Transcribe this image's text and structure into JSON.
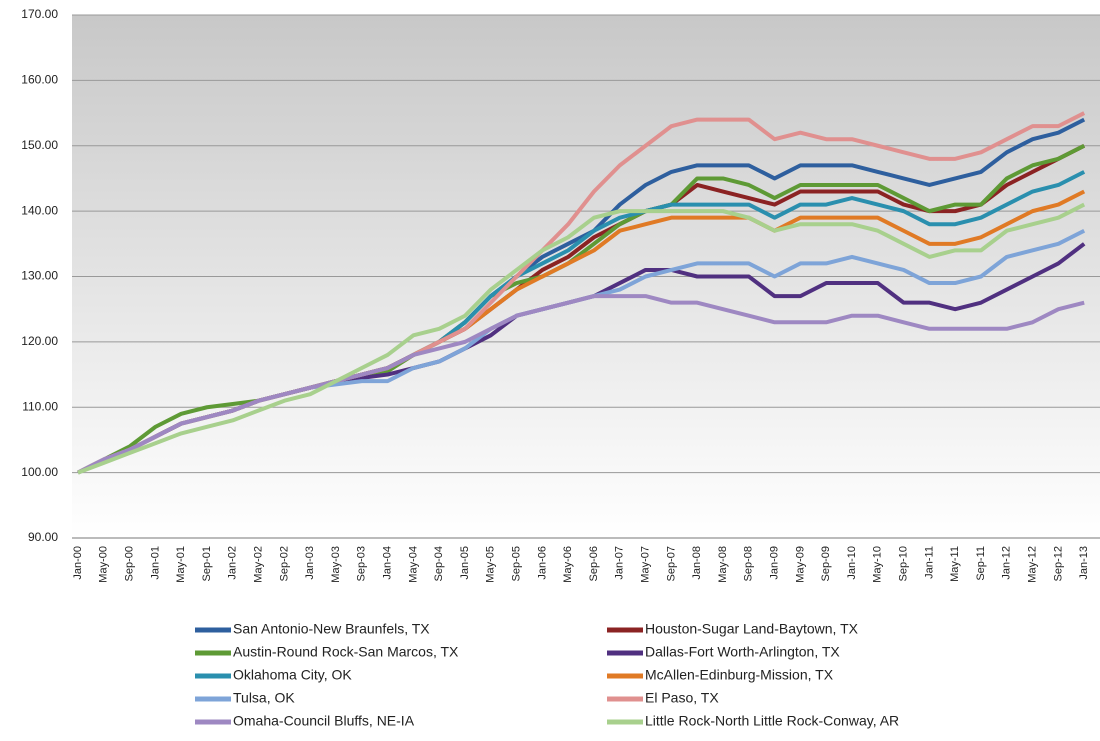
{
  "chart_data": {
    "type": "line",
    "categories": [
      "Jan-00",
      "May-00",
      "Sep-00",
      "Jan-01",
      "May-01",
      "Sep-01",
      "Jan-02",
      "May-02",
      "Sep-02",
      "Jan-03",
      "May-03",
      "Sep-03",
      "Jan-04",
      "May-04",
      "Sep-04",
      "Jan-05",
      "May-05",
      "Sep-05",
      "Jan-06",
      "May-06",
      "Sep-06",
      "Jan-07",
      "May-07",
      "Sep-07",
      "Jan-08",
      "May-08",
      "Sep-08",
      "Jan-09",
      "May-09",
      "Sep-09",
      "Jan-10",
      "May-10",
      "Sep-10",
      "Jan-11",
      "May-11",
      "Sep-11",
      "Jan-12",
      "May-12",
      "Sep-12",
      "Jan-13"
    ],
    "ylim": [
      90,
      170
    ],
    "yticks": [
      {
        "value": 90,
        "label": "90.00"
      },
      {
        "value": 100,
        "label": "100.00"
      },
      {
        "value": 110,
        "label": "110.00"
      },
      {
        "value": 120,
        "label": "120.00"
      },
      {
        "value": 130,
        "label": "130.00"
      },
      {
        "value": 140,
        "label": "140.00"
      },
      {
        "value": 150,
        "label": "150.00"
      },
      {
        "value": 160,
        "label": "160.00"
      },
      {
        "value": 170,
        "label": "170.00"
      }
    ],
    "grid": true,
    "series": [
      {
        "name": "San Antonio-New Braunfels, TX",
        "color": "#2e5f9e",
        "values": [
          100,
          102,
          103.5,
          105.5,
          107.5,
          108.5,
          109.5,
          111,
          112,
          113,
          114,
          115,
          116,
          118,
          120,
          123,
          127,
          130,
          133,
          135,
          137,
          141,
          144,
          146,
          147,
          147,
          147,
          145,
          147,
          147,
          147,
          146,
          145,
          144,
          145,
          146,
          149,
          151,
          152,
          154
        ]
      },
      {
        "name": "Houston-Sugar Land-Baytown, TX",
        "color": "#8b2323",
        "values": [
          100,
          102,
          103.5,
          105.5,
          107.5,
          108.5,
          109.5,
          111,
          112,
          113,
          114,
          115,
          116,
          118,
          120,
          122,
          125,
          128,
          131,
          133,
          136,
          138,
          140,
          141,
          144,
          143,
          142,
          141,
          143,
          143,
          143,
          143,
          141,
          140,
          140,
          141,
          144,
          146,
          148,
          150
        ]
      },
      {
        "name": "Austin-Round Rock-San Marcos, TX",
        "color": "#5e9a35",
        "values": [
          100,
          102,
          104,
          107,
          109,
          110,
          110.5,
          111,
          112,
          113,
          114,
          115,
          115.5,
          118,
          120,
          123,
          127,
          129,
          130,
          132,
          135,
          138,
          140,
          141,
          145,
          145,
          144,
          142,
          144,
          144,
          144,
          144,
          142,
          140,
          141,
          141,
          145,
          147,
          148,
          150
        ]
      },
      {
        "name": "Dallas-Fort Worth-Arlington, TX",
        "color": "#503080",
        "values": [
          100,
          102,
          103.5,
          105.5,
          107.5,
          108.5,
          109.5,
          111,
          112,
          113,
          114,
          114.5,
          115,
          116,
          117,
          119,
          121,
          124,
          125,
          126,
          127,
          129,
          131,
          131,
          130,
          130,
          130,
          127,
          127,
          129,
          129,
          129,
          126,
          126,
          125,
          126,
          128,
          130,
          132,
          135
        ]
      },
      {
        "name": "Oklahoma City, OK",
        "color": "#2a8fae",
        "values": [
          100,
          102,
          103.5,
          105.5,
          107.5,
          108.5,
          109.5,
          111,
          112,
          113,
          114,
          115,
          116,
          118,
          120,
          123,
          127,
          130,
          132,
          134,
          137,
          139,
          140,
          141,
          141,
          141,
          141,
          139,
          141,
          141,
          142,
          141,
          140,
          138,
          138,
          139,
          141,
          143,
          144,
          146
        ]
      },
      {
        "name": "McAllen-Edinburg-Mission, TX",
        "color": "#e07a25",
        "values": [
          100,
          102,
          103.5,
          105.5,
          107.5,
          108.5,
          109.5,
          111,
          112,
          113,
          114,
          115,
          116,
          118,
          120,
          122,
          125,
          128,
          130,
          132,
          134,
          137,
          138,
          139,
          139,
          139,
          139,
          137,
          139,
          139,
          139,
          139,
          137,
          135,
          135,
          136,
          138,
          140,
          141,
          143
        ]
      },
      {
        "name": "Tulsa, OK",
        "color": "#7ea4d8",
        "values": [
          100,
          102,
          103.5,
          105.5,
          107.5,
          108.5,
          109.5,
          111,
          112,
          113,
          113.5,
          114,
          114,
          116,
          117,
          119,
          122,
          124,
          125,
          126,
          127,
          128,
          130,
          131,
          132,
          132,
          132,
          130,
          132,
          132,
          133,
          132,
          131,
          129,
          129,
          130,
          133,
          134,
          135,
          137
        ]
      },
      {
        "name": "El Paso, TX",
        "color": "#e0908f",
        "values": [
          100,
          102,
          103.5,
          105.5,
          107.5,
          108.5,
          109.5,
          111,
          112,
          113,
          114,
          115,
          116,
          118,
          120,
          122,
          126,
          130,
          134,
          138,
          143,
          147,
          150,
          153,
          154,
          154,
          154,
          151,
          152,
          151,
          151,
          150,
          149,
          148,
          148,
          149,
          151,
          153,
          153,
          155
        ]
      },
      {
        "name": "Omaha-Council Bluffs, NE-IA",
        "color": "#9e88c2",
        "values": [
          100,
          102,
          103.5,
          105.5,
          107.5,
          108.5,
          109.5,
          111,
          112,
          113,
          114,
          115,
          116,
          118,
          119,
          120,
          122,
          124,
          125,
          126,
          127,
          127,
          127,
          126,
          126,
          125,
          124,
          123,
          123,
          123,
          124,
          124,
          123,
          122,
          122,
          122,
          122,
          123,
          125,
          126
        ]
      },
      {
        "name": "Little Rock-North Little Rock-Conway, AR",
        "color": "#a8d08d",
        "values": [
          100,
          101.5,
          103,
          104.5,
          106,
          107,
          108,
          109.5,
          111,
          112,
          114,
          116,
          118,
          121,
          122,
          124,
          128,
          131,
          134,
          136,
          139,
          140,
          140,
          140,
          140,
          140,
          139,
          137,
          138,
          138,
          138,
          137,
          135,
          133,
          134,
          134,
          137,
          138,
          139,
          141
        ]
      }
    ]
  }
}
